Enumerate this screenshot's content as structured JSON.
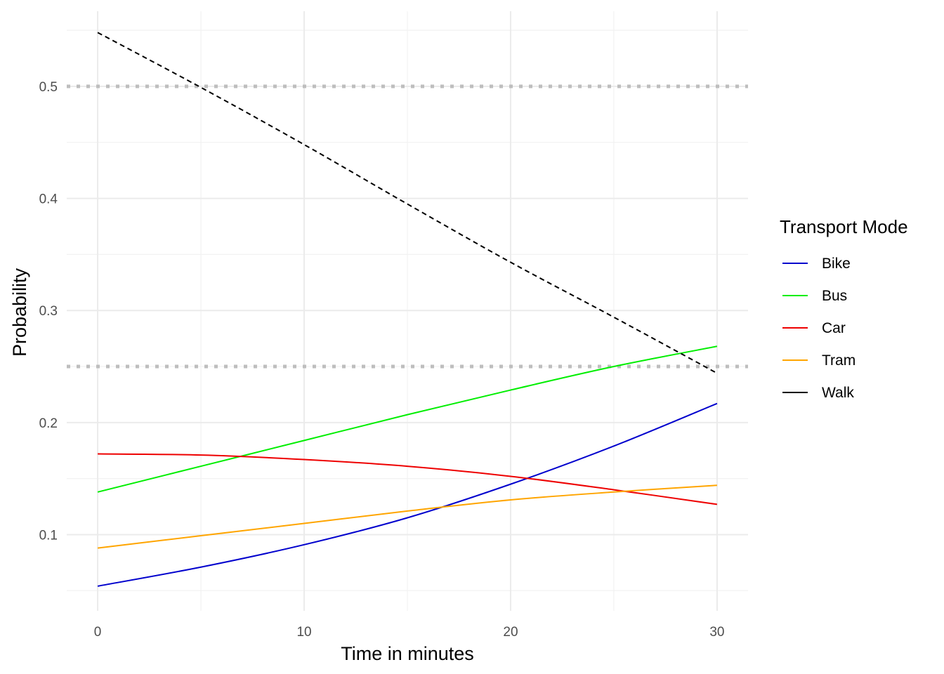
{
  "chart_data": {
    "type": "line",
    "title": "",
    "xlabel": "Time in minutes",
    "ylabel": "Probability",
    "xlim": [
      -1.5,
      31.5
    ],
    "ylim": [
      0.032,
      0.567
    ],
    "x_ticks": [
      0,
      10,
      20,
      30
    ],
    "x_tick_labels": [
      "0",
      "10",
      "20",
      "30"
    ],
    "y_ticks": [
      0.1,
      0.2,
      0.3,
      0.4,
      0.5
    ],
    "y_tick_labels": [
      "0.1",
      "0.2",
      "0.3",
      "0.4",
      "0.5"
    ],
    "grid": true,
    "reference_lines": [
      {
        "y": 0.5,
        "style": "dotted",
        "color": "#bebebe"
      },
      {
        "y": 0.25,
        "style": "dotted",
        "color": "#bebebe"
      }
    ],
    "x": [
      0,
      5,
      10,
      15,
      20,
      25,
      30
    ],
    "series": [
      {
        "name": "Bike",
        "color": "#0000cd",
        "dash": "solid",
        "values": [
          0.054,
          0.071,
          0.091,
          0.115,
          0.145,
          0.179,
          0.217
        ]
      },
      {
        "name": "Bus",
        "color": "#00ee00",
        "dash": "solid",
        "values": [
          0.138,
          0.161,
          0.184,
          0.207,
          0.229,
          0.25,
          0.268
        ]
      },
      {
        "name": "Car",
        "color": "#ee0000",
        "dash": "solid",
        "values": [
          0.172,
          0.171,
          0.167,
          0.161,
          0.152,
          0.14,
          0.127
        ]
      },
      {
        "name": "Tram",
        "color": "#ffa500",
        "dash": "solid",
        "values": [
          0.088,
          0.099,
          0.11,
          0.121,
          0.131,
          0.138,
          0.144
        ]
      },
      {
        "name": "Walk",
        "color": "#000000",
        "dash": "dashed",
        "values": [
          0.548,
          0.499,
          0.448,
          0.395,
          0.343,
          0.294,
          0.244
        ]
      }
    ],
    "legend": {
      "title": "Transport Mode",
      "position": "right"
    }
  }
}
